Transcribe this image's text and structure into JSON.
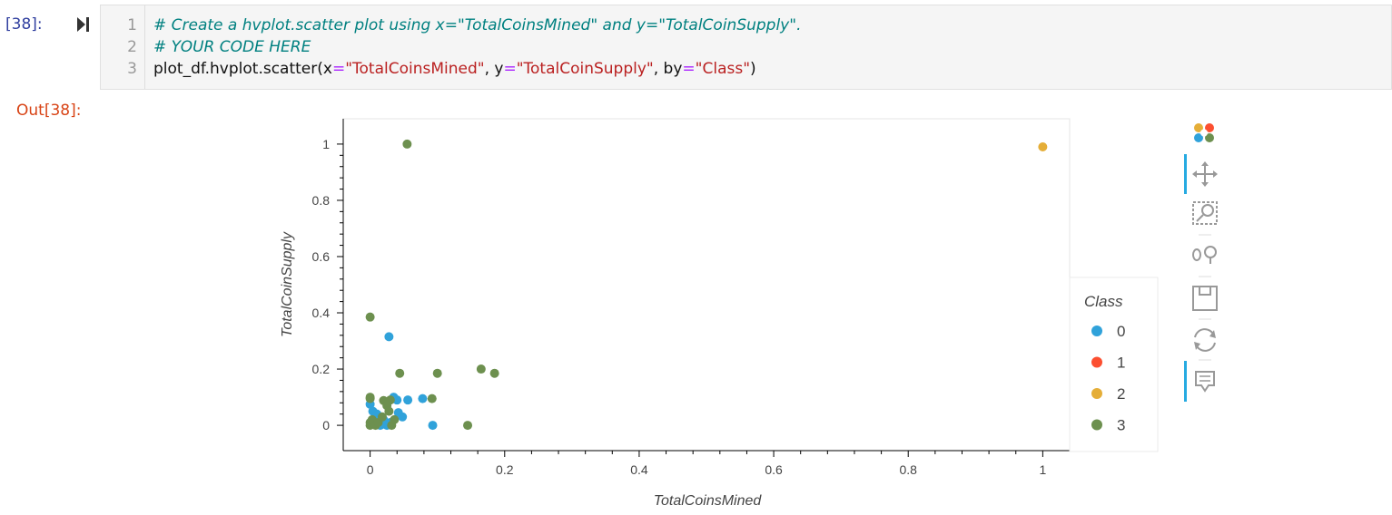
{
  "prompts": {
    "in": "[38]:",
    "out": "Out[38]:"
  },
  "code": {
    "line_numbers": [
      "1",
      "2",
      "3"
    ],
    "line1": "# Create a hvplot.scatter plot using x=\"TotalCoinsMined\" and y=\"TotalCoinSupply\".",
    "line2": "# YOUR CODE HERE",
    "line3": {
      "p1": "plot_df.hvplot.scatter(x",
      "eq": "=",
      "s1": "\"TotalCoinsMined\"",
      "p2": ", y",
      "s2": "\"TotalCoinSupply\"",
      "p3": ", by",
      "s3": "\"Class\"",
      "p4": ")"
    }
  },
  "toolbar": {
    "tools": [
      "bokeh-logo-icon",
      "pan-icon",
      "box-zoom-icon",
      "wheel-zoom-icon",
      "save-icon",
      "reset-icon",
      "hover-icon"
    ]
  },
  "colors": {
    "class0": "#30a2da",
    "class1": "#fc4f30",
    "class2": "#e5ae38",
    "class3": "#6d904f"
  },
  "chart_data": {
    "type": "scatter",
    "xlabel": "TotalCoinsMined",
    "ylabel": "TotalCoinSupply",
    "xlim": [
      -0.04,
      1.04
    ],
    "ylim": [
      -0.09,
      1.09
    ],
    "xticks": [
      0,
      0.2,
      0.4,
      0.6,
      0.8,
      1
    ],
    "xtick_labels": [
      "0",
      "0.2",
      "0.4",
      "0.6",
      "0.8",
      "1"
    ],
    "yticks": [
      0,
      0.2,
      0.4,
      0.6,
      0.8,
      1
    ],
    "ytick_labels": [
      "0",
      "0.2",
      "0.4",
      "0.6",
      "0.8",
      "1"
    ],
    "legend_title": "Class",
    "legend_position": "right",
    "series": [
      {
        "name": "0",
        "color": "#30a2da",
        "points": [
          [
            0.0,
            0.075
          ],
          [
            0.004,
            0.05
          ],
          [
            0.01,
            0.04
          ],
          [
            0.016,
            0.03
          ],
          [
            0.02,
            0.02
          ],
          [
            0.025,
            0.0
          ],
          [
            0.028,
            0.315
          ],
          [
            0.035,
            0.1
          ],
          [
            0.04,
            0.09
          ],
          [
            0.042,
            0.045
          ],
          [
            0.048,
            0.03
          ],
          [
            0.056,
            0.09
          ],
          [
            0.078,
            0.095
          ],
          [
            0.093,
            0.0
          ],
          [
            0.01,
            0.01
          ],
          [
            0.015,
            0.0
          ],
          [
            0.03,
            0.01
          ],
          [
            0.005,
            0.02
          ]
        ]
      },
      {
        "name": "1",
        "color": "#fc4f30",
        "points": []
      },
      {
        "name": "2",
        "color": "#e5ae38",
        "points": [
          [
            1.0,
            0.99
          ]
        ]
      },
      {
        "name": "3",
        "color": "#6d904f",
        "points": [
          [
            0.055,
            1.0
          ],
          [
            0.0,
            0.385
          ],
          [
            0.0,
            0.1
          ],
          [
            0.0,
            0.095
          ],
          [
            0.0,
            0.01
          ],
          [
            0.0,
            0.0
          ],
          [
            0.003,
            0.02
          ],
          [
            0.008,
            0.0
          ],
          [
            0.012,
            0.01
          ],
          [
            0.02,
            0.088
          ],
          [
            0.03,
            0.09
          ],
          [
            0.028,
            0.05
          ],
          [
            0.032,
            0.0
          ],
          [
            0.036,
            0.02
          ],
          [
            0.044,
            0.185
          ],
          [
            0.092,
            0.095
          ],
          [
            0.1,
            0.185
          ],
          [
            0.145,
            0.0
          ],
          [
            0.165,
            0.2
          ],
          [
            0.185,
            0.185
          ],
          [
            0.018,
            0.03
          ],
          [
            0.025,
            0.07
          ]
        ]
      }
    ]
  }
}
